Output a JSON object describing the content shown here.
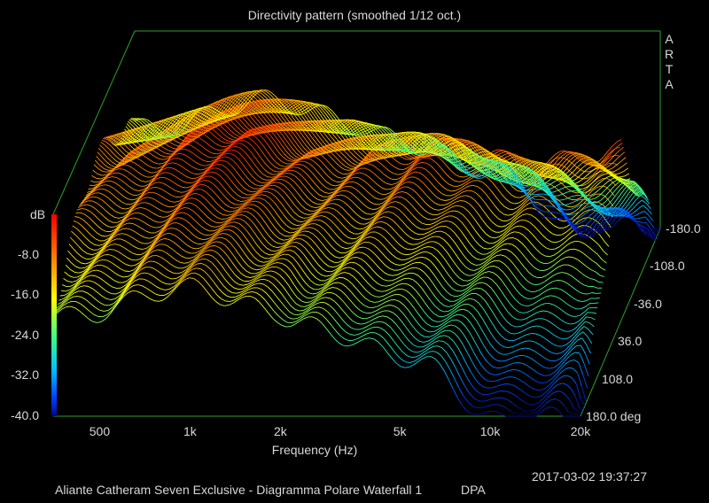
{
  "chart_data": {
    "type": "waterfall",
    "title": "Directivity pattern (smoothed 1/12 oct.)",
    "xlabel": "Frequency (Hz)",
    "ylabel": "dB",
    "zlabel": "deg",
    "brand": "ARTA",
    "x_ticks": [
      "500",
      "1k",
      "2k",
      "5k",
      "10k",
      "20k"
    ],
    "x_tick_values": [
      500,
      1000,
      2000,
      5000,
      10000,
      20000
    ],
    "xlim": [
      350,
      20000
    ],
    "x_scale": "log",
    "y_ticks": [
      "-8.0",
      "-16.0",
      "-24.0",
      "-32.0",
      "-40.0"
    ],
    "ylim": [
      -40,
      0
    ],
    "z_ticks": [
      "-180.0",
      "-108.0",
      "-36.0",
      "36.0",
      "108.0",
      "180.0 deg"
    ],
    "zlim": [
      -180,
      180
    ],
    "colormap": [
      "#000080",
      "#0040ff",
      "#00c0ff",
      "#40ff80",
      "#ffff00",
      "#ff8000",
      "#ff0000",
      "#800000"
    ],
    "timestamp": "2017-03-02  19:37:27",
    "footer": "Aliante Catheram Seven Exclusive - Diagramma Polare Waterfall 1",
    "footer_right": "DPA",
    "series_count": 73,
    "angle_step_deg": 5
  }
}
